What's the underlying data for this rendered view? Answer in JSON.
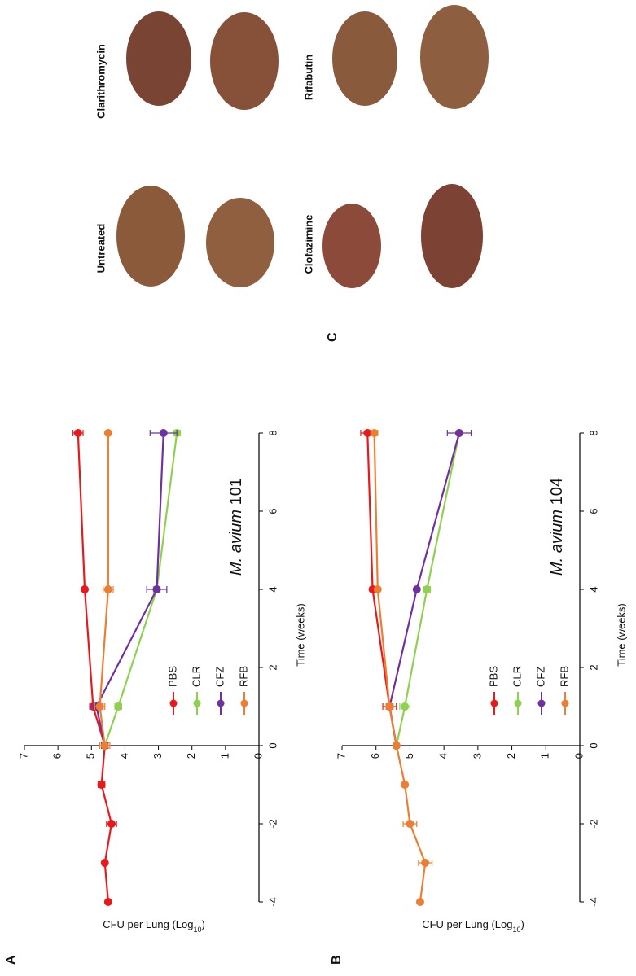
{
  "panel_labels": [
    "A",
    "B",
    "C"
  ],
  "chart_data": [
    {
      "type": "line",
      "x": [
        -4,
        -3,
        -2,
        -1,
        0,
        1,
        4,
        8
      ],
      "series": [
        {
          "name": "PBS",
          "color": "#e8191b",
          "values": [
            4.5,
            4.6,
            4.4,
            4.7,
            4.6,
            4.95,
            5.2,
            5.4
          ],
          "errors": [
            0.05,
            0.05,
            0.15,
            0.1,
            0.1,
            0.1,
            0.05,
            0.15
          ]
        },
        {
          "name": "CLR",
          "color": "#8fd14f",
          "values": [
            null,
            null,
            null,
            null,
            4.6,
            4.2,
            3.05,
            2.45
          ],
          "errors": [
            null,
            null,
            null,
            null,
            0.1,
            0.1,
            0.1,
            0.1
          ]
        },
        {
          "name": "CFZ",
          "color": "#7030a0",
          "values": [
            null,
            null,
            null,
            null,
            4.6,
            4.85,
            3.05,
            2.85
          ],
          "errors": [
            null,
            null,
            null,
            null,
            0.1,
            0.2,
            0.3,
            0.4
          ]
        },
        {
          "name": "RFB",
          "color": "#ed7d31",
          "values": [
            null,
            null,
            null,
            null,
            4.6,
            4.75,
            4.5,
            4.5
          ],
          "errors": [
            null,
            null,
            null,
            null,
            0.15,
            0.15,
            0.15,
            0.05
          ]
        }
      ],
      "xlim": [
        -4,
        8
      ],
      "xticks": [
        -4,
        -2,
        0,
        2,
        4,
        6,
        8
      ],
      "ylim": [
        0,
        7
      ],
      "yticks": [
        0,
        1,
        2,
        3,
        4,
        5,
        6,
        7
      ],
      "x_label": "Time (weeks)",
      "y_label": [
        "CFU per Lung (Log",
        "10",
        ")"
      ],
      "annotation": {
        "species": "M. avium",
        "strain": "101"
      },
      "legend": "lower center"
    },
    {
      "type": "line",
      "x": [
        -4,
        -3,
        -2,
        -1,
        0,
        1,
        4,
        8
      ],
      "series": [
        {
          "name": "PBS",
          "color": "#e8191b",
          "values": [
            null,
            null,
            null,
            null,
            5.4,
            5.6,
            6.1,
            6.25
          ],
          "errors": [
            null,
            null,
            null,
            null,
            0.05,
            0.2,
            0.05,
            0.2
          ]
        },
        {
          "name": "CLR",
          "color": "#8fd14f",
          "values": [
            null,
            null,
            null,
            null,
            5.4,
            5.15,
            4.5,
            3.55
          ],
          "errors": [
            null,
            null,
            null,
            null,
            0.05,
            0.15,
            0.1,
            0.05
          ]
        },
        {
          "name": "CFZ",
          "color": "#7030a0",
          "values": [
            null,
            null,
            null,
            null,
            5.4,
            5.6,
            4.8,
            3.55
          ],
          "errors": [
            null,
            null,
            null,
            null,
            0.05,
            0.1,
            0.05,
            0.35
          ]
        },
        {
          "name": "RFB",
          "color": "#ed7d31",
          "values": [
            4.7,
            4.55,
            5.0,
            5.15,
            5.4,
            5.6,
            5.95,
            6.05
          ],
          "errors": [
            0.05,
            0.2,
            0.2,
            0.05,
            0.05,
            0.1,
            0.05,
            0.1
          ]
        }
      ],
      "xlim": [
        -4,
        8
      ],
      "xticks": [
        -4,
        -2,
        0,
        2,
        4,
        6,
        8
      ],
      "ylim": [
        0,
        7
      ],
      "yticks": [
        0,
        1,
        2,
        3,
        4,
        5,
        6,
        7
      ],
      "x_label": "Time (weeks)",
      "y_label": [
        "CFU per Lung (Log",
        "10",
        ")"
      ],
      "annotation": {
        "species": "M. avium",
        "strain": "104"
      },
      "legend": "lower center"
    }
  ],
  "photos": {
    "labels": [
      "Untreated",
      "Clarithromycin",
      "Clofazimine",
      "Rifabutin"
    ]
  }
}
